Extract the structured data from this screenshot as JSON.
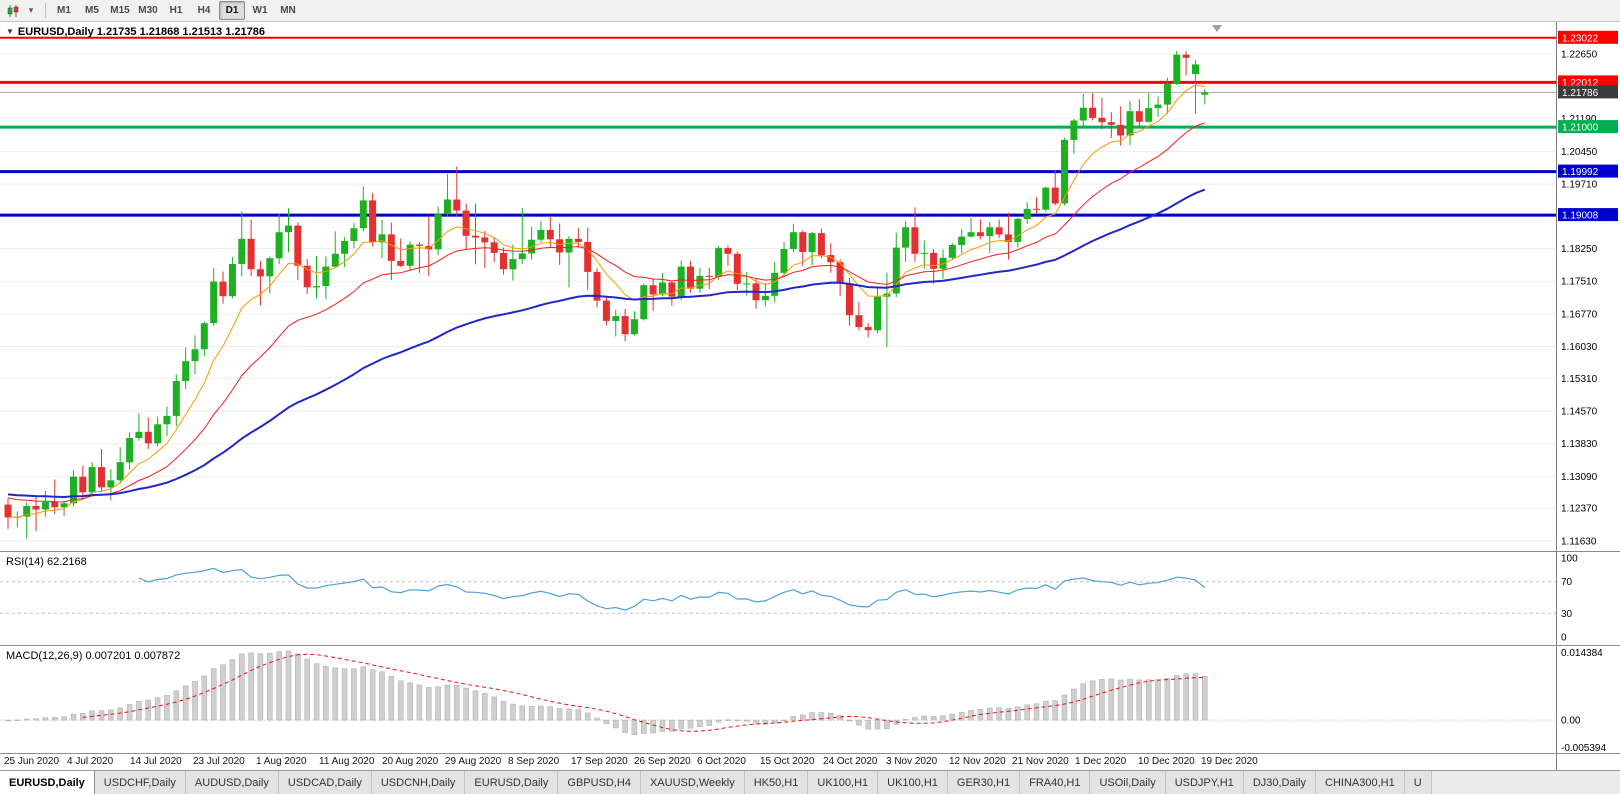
{
  "colors": {
    "up": "#1cb022",
    "down": "#e33030",
    "ma_fast": "#f79a00",
    "ma_mid": "#ff1a1a",
    "ma_slow": "#2028c8",
    "rsi": "#4fa0d8",
    "macd_hist": "#cfcfcf",
    "macd_signal": "#ee1111",
    "level_red": "#ff0000",
    "level_green": "#00b050",
    "level_blue": "#0000cd",
    "bid_line": "#a8a8a8",
    "bid_box": "#3c3c3c",
    "grid": "#ededed",
    "axis_text": "#000000"
  },
  "toolbar": {
    "chart_type_icon": "candlestick-chart",
    "dropdown_icon": "chevron-down",
    "timeframes": [
      "M1",
      "M5",
      "M15",
      "M30",
      "H1",
      "H4",
      "D1",
      "W1",
      "MN"
    ],
    "active": "D1"
  },
  "price_panel": {
    "header": "EURUSD,Daily 1.21735 1.21868 1.21513 1.21786",
    "axis_values": [
      1.2265,
      1.2191,
      1.2119,
      1.2045,
      1.1971,
      1.1897,
      1.1825,
      1.1751,
      1.1677,
      1.1603,
      1.1531,
      1.1457,
      1.1383,
      1.1309,
      1.1237,
      1.1163
    ],
    "levels": [
      {
        "value": 1.23022,
        "label": "1.23022",
        "color_key": "level_red",
        "width": 2
      },
      {
        "value": 1.22012,
        "label": "1.22012",
        "color_key": "level_red",
        "width": 3
      },
      {
        "value": 1.21,
        "label": "1.21000",
        "color_key": "level_green",
        "width": 3
      },
      {
        "value": 1.19992,
        "label": "1.19992",
        "color_key": "level_blue",
        "width": 3
      },
      {
        "value": 1.19008,
        "label": "1.19008",
        "color_key": "level_blue",
        "width": 3
      }
    ],
    "bid": {
      "value": 1.21786,
      "label": "1.21786"
    }
  },
  "rsi_panel": {
    "header": "RSI(14) 62.2168",
    "period": 14,
    "axis_values": [
      100,
      70,
      30,
      0
    ],
    "level_lines": [
      70,
      30
    ],
    "range": [
      0,
      100
    ]
  },
  "macd_panel": {
    "header": "MACD(12,26,9) 0.007201 0.007872",
    "params": [
      12,
      26,
      9
    ],
    "axis_labels": [
      "0.014384",
      "0.00",
      "-0.005394"
    ],
    "range": [
      -0.005394,
      0.014384
    ]
  },
  "date_axis": [
    "25 Jun 2020",
    "4 Jul 2020",
    "14 Jul 2020",
    "23 Jul 2020",
    "1 Aug 2020",
    "11 Aug 2020",
    "20 Aug 2020",
    "29 Aug 2020",
    "8 Sep 2020",
    "17 Sep 2020",
    "26 Sep 2020",
    "6 Oct 2020",
    "15 Oct 2020",
    "24 Oct 2020",
    "3 Nov 2020",
    "12 Nov 2020",
    "21 Nov 2020",
    "1 Dec 2020",
    "10 Dec 2020",
    "19 Dec 2020"
  ],
  "tabs": {
    "items": [
      "EURUSD,Daily",
      "USDCHF,Daily",
      "AUDUSD,Daily",
      "USDCAD,Daily",
      "USDCNH,Daily",
      "EURUSD,Daily",
      "GBPUSD,H4",
      "XAUUSD,Weekly",
      "HK50,H1",
      "UK100,H1",
      "UK100,H1",
      "GER30,H1",
      "FRA40,H1",
      "USOil,Daily",
      "USDJPY,H1",
      "DJ30,Daily",
      "CHINA300,H1",
      "U"
    ],
    "active_index": 0
  },
  "chart_data": {
    "type": "candlestick",
    "symbol": "EURUSD",
    "timeframe": "Daily",
    "current_ohlc": {
      "open": 1.21735,
      "high": 1.21868,
      "low": 1.21513,
      "close": 1.21786
    },
    "ma_periods": {
      "fast": 8,
      "mid": 20,
      "slow": 55
    },
    "rsi_period": 14,
    "macd_params": [
      12,
      26,
      9
    ],
    "ohlc": [
      [
        1.1245,
        1.1259,
        1.119,
        1.1216
      ],
      [
        1.1216,
        1.123,
        1.1194,
        1.1218
      ],
      [
        1.1218,
        1.125,
        1.1168,
        1.1242
      ],
      [
        1.1242,
        1.1262,
        1.1185,
        1.1234
      ],
      [
        1.1234,
        1.1276,
        1.1218,
        1.1251
      ],
      [
        1.1251,
        1.1302,
        1.1223,
        1.1239
      ],
      [
        1.1239,
        1.1254,
        1.1219,
        1.1248
      ],
      [
        1.1248,
        1.1322,
        1.1241,
        1.1308
      ],
      [
        1.1308,
        1.1333,
        1.1259,
        1.1273
      ],
      [
        1.1273,
        1.1341,
        1.1263,
        1.133
      ],
      [
        1.133,
        1.1371,
        1.1275,
        1.1284
      ],
      [
        1.1284,
        1.1325,
        1.1254,
        1.13
      ],
      [
        1.13,
        1.1375,
        1.1292,
        1.1341
      ],
      [
        1.1341,
        1.1409,
        1.1325,
        1.1396
      ],
      [
        1.1396,
        1.1452,
        1.139,
        1.141
      ],
      [
        1.141,
        1.1442,
        1.1371,
        1.1384
      ],
      [
        1.1384,
        1.1444,
        1.1377,
        1.1427
      ],
      [
        1.1427,
        1.1467,
        1.14,
        1.1446
      ],
      [
        1.1446,
        1.154,
        1.1422,
        1.1525
      ],
      [
        1.1525,
        1.1601,
        1.1507,
        1.157
      ],
      [
        1.157,
        1.1628,
        1.154,
        1.1597
      ],
      [
        1.1597,
        1.166,
        1.1581,
        1.1656
      ],
      [
        1.1656,
        1.1781,
        1.165,
        1.175
      ],
      [
        1.175,
        1.1773,
        1.17,
        1.1717
      ],
      [
        1.1717,
        1.1806,
        1.1712,
        1.179
      ],
      [
        1.179,
        1.1909,
        1.1762,
        1.1847
      ],
      [
        1.1847,
        1.1891,
        1.1762,
        1.1778
      ],
      [
        1.1778,
        1.1797,
        1.1696,
        1.1762
      ],
      [
        1.1762,
        1.1807,
        1.1723,
        1.1803
      ],
      [
        1.1803,
        1.1904,
        1.179,
        1.1862
      ],
      [
        1.1862,
        1.1916,
        1.1817,
        1.1877
      ],
      [
        1.1877,
        1.1884,
        1.1754,
        1.1786
      ],
      [
        1.1786,
        1.1801,
        1.1722,
        1.1737
      ],
      [
        1.1737,
        1.1808,
        1.1711,
        1.174
      ],
      [
        1.174,
        1.1807,
        1.171,
        1.1784
      ],
      [
        1.1784,
        1.1864,
        1.1782,
        1.1813
      ],
      [
        1.1813,
        1.1851,
        1.1783,
        1.1842
      ],
      [
        1.1842,
        1.1883,
        1.1826,
        1.1871
      ],
      [
        1.1871,
        1.1966,
        1.1864,
        1.1934
      ],
      [
        1.1934,
        1.1951,
        1.183,
        1.1839
      ],
      [
        1.1839,
        1.189,
        1.1803,
        1.1857
      ],
      [
        1.1857,
        1.1884,
        1.1754,
        1.1797
      ],
      [
        1.1797,
        1.1848,
        1.1783,
        1.1786
      ],
      [
        1.1786,
        1.1841,
        1.1774,
        1.1834
      ],
      [
        1.1834,
        1.1839,
        1.177,
        1.1831
      ],
      [
        1.1831,
        1.19,
        1.1763,
        1.1823
      ],
      [
        1.1823,
        1.192,
        1.181,
        1.1903
      ],
      [
        1.1903,
        1.1993,
        1.1898,
        1.1936
      ],
      [
        1.1936,
        1.2011,
        1.1898,
        1.1911
      ],
      [
        1.1911,
        1.1927,
        1.1822,
        1.1854
      ],
      [
        1.1854,
        1.1927,
        1.1789,
        1.185
      ],
      [
        1.185,
        1.1865,
        1.1781,
        1.1839
      ],
      [
        1.1839,
        1.1849,
        1.1794,
        1.1815
      ],
      [
        1.1815,
        1.1827,
        1.1766,
        1.1778
      ],
      [
        1.1778,
        1.1834,
        1.1753,
        1.1801
      ],
      [
        1.1801,
        1.1917,
        1.179,
        1.1814
      ],
      [
        1.1814,
        1.1874,
        1.18,
        1.1845
      ],
      [
        1.1845,
        1.1888,
        1.1839,
        1.1867
      ],
      [
        1.1867,
        1.1899,
        1.1829,
        1.1846
      ],
      [
        1.1846,
        1.1882,
        1.1788,
        1.1816
      ],
      [
        1.1816,
        1.1853,
        1.1737,
        1.1847
      ],
      [
        1.1847,
        1.1871,
        1.1827,
        1.184
      ],
      [
        1.184,
        1.1872,
        1.1732,
        1.1772
      ],
      [
        1.1772,
        1.178,
        1.1692,
        1.1707
      ],
      [
        1.1707,
        1.1718,
        1.1651,
        1.1661
      ],
      [
        1.1661,
        1.1686,
        1.1626,
        1.1672
      ],
      [
        1.1672,
        1.1688,
        1.1615,
        1.1631
      ],
      [
        1.1631,
        1.1683,
        1.1628,
        1.1665
      ],
      [
        1.1665,
        1.1746,
        1.1662,
        1.1742
      ],
      [
        1.1742,
        1.1755,
        1.1684,
        1.1721
      ],
      [
        1.1721,
        1.1769,
        1.1717,
        1.1748
      ],
      [
        1.1748,
        1.1752,
        1.1695,
        1.1716
      ],
      [
        1.1716,
        1.1798,
        1.1708,
        1.1784
      ],
      [
        1.1784,
        1.1797,
        1.1725,
        1.1734
      ],
      [
        1.1734,
        1.1781,
        1.1725,
        1.1763
      ],
      [
        1.1763,
        1.1782,
        1.1733,
        1.1761
      ],
      [
        1.1761,
        1.1831,
        1.1754,
        1.1826
      ],
      [
        1.1826,
        1.1832,
        1.1786,
        1.1813
      ],
      [
        1.1813,
        1.1818,
        1.1731,
        1.1745
      ],
      [
        1.1745,
        1.1772,
        1.1719,
        1.1746
      ],
      [
        1.1746,
        1.1758,
        1.1688,
        1.1708
      ],
      [
        1.1708,
        1.1747,
        1.1694,
        1.1718
      ],
      [
        1.1718,
        1.1794,
        1.1703,
        1.177
      ],
      [
        1.177,
        1.184,
        1.176,
        1.1824
      ],
      [
        1.1824,
        1.1881,
        1.1817,
        1.1862
      ],
      [
        1.1862,
        1.1866,
        1.1786,
        1.1817
      ],
      [
        1.1817,
        1.1863,
        1.1787,
        1.186
      ],
      [
        1.186,
        1.187,
        1.1803,
        1.181
      ],
      [
        1.181,
        1.1837,
        1.177,
        1.1794
      ],
      [
        1.1794,
        1.18,
        1.1718,
        1.1746
      ],
      [
        1.1746,
        1.1759,
        1.165,
        1.1674
      ],
      [
        1.1674,
        1.1704,
        1.164,
        1.1647
      ],
      [
        1.1647,
        1.1656,
        1.1623,
        1.164
      ],
      [
        1.164,
        1.174,
        1.1633,
        1.1716
      ],
      [
        1.1716,
        1.177,
        1.1602,
        1.1723
      ],
      [
        1.1723,
        1.1861,
        1.1715,
        1.1827
      ],
      [
        1.1827,
        1.1888,
        1.1795,
        1.1873
      ],
      [
        1.1873,
        1.1918,
        1.1795,
        1.1813
      ],
      [
        1.1813,
        1.1843,
        1.1779,
        1.1815
      ],
      [
        1.1815,
        1.1824,
        1.1745,
        1.1779
      ],
      [
        1.1779,
        1.1823,
        1.1757,
        1.1804
      ],
      [
        1.1804,
        1.1837,
        1.1799,
        1.1833
      ],
      [
        1.1833,
        1.1869,
        1.1814,
        1.1852
      ],
      [
        1.1852,
        1.1894,
        1.1849,
        1.1862
      ],
      [
        1.1862,
        1.1891,
        1.1846,
        1.1853
      ],
      [
        1.1853,
        1.1885,
        1.1815,
        1.1873
      ],
      [
        1.1873,
        1.1891,
        1.1849,
        1.1857
      ],
      [
        1.1857,
        1.1906,
        1.18,
        1.184
      ],
      [
        1.184,
        1.1895,
        1.1827,
        1.1892
      ],
      [
        1.1892,
        1.193,
        1.1881,
        1.1915
      ],
      [
        1.1915,
        1.1941,
        1.1905,
        1.1913
      ],
      [
        1.1913,
        1.1965,
        1.1907,
        1.1963
      ],
      [
        1.1963,
        1.2003,
        1.1923,
        1.1927
      ],
      [
        1.1927,
        1.2076,
        1.1922,
        1.2071
      ],
      [
        1.2071,
        1.2118,
        1.204,
        1.2115
      ],
      [
        1.2115,
        1.2175,
        1.2103,
        1.2144
      ],
      [
        1.2144,
        1.2177,
        1.2115,
        1.2121
      ],
      [
        1.2121,
        1.2166,
        1.2095,
        1.2111
      ],
      [
        1.2111,
        1.2134,
        1.2075,
        1.2105
      ],
      [
        1.2105,
        1.2147,
        1.2058,
        1.2081
      ],
      [
        1.2081,
        1.2159,
        1.2059,
        1.2136
      ],
      [
        1.2136,
        1.2163,
        1.2103,
        1.2112
      ],
      [
        1.2112,
        1.2177,
        1.211,
        1.2143
      ],
      [
        1.2143,
        1.2169,
        1.2123,
        1.2151
      ],
      [
        1.2151,
        1.2212,
        1.213,
        1.2198
      ],
      [
        1.2198,
        1.2273,
        1.2195,
        1.2264
      ],
      [
        1.2264,
        1.2272,
        1.2217,
        1.2257
      ],
      [
        1.222,
        1.2252,
        1.213,
        1.2242
      ],
      [
        1.21735,
        1.21868,
        1.21513,
        1.21786
      ]
    ]
  }
}
